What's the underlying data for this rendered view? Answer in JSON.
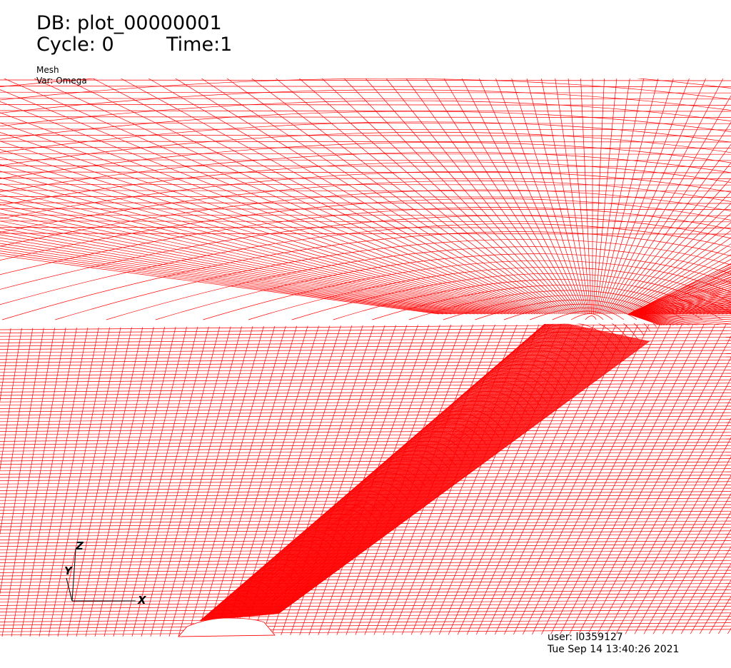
{
  "header": {
    "db_label": "DB: plot_00000001",
    "cycle_label": "Cycle: 0",
    "time_label": "Time:1"
  },
  "plot": {
    "type_label": "Mesh",
    "var_label": "Var: Omega",
    "mesh_color": "#ff0000"
  },
  "axes": {
    "x_label": "X",
    "y_label": "Y",
    "z_label": "Z"
  },
  "footer": {
    "user_label": "user: l0359127",
    "date_label": "Tue Sep 14 13:40:26 2021"
  }
}
